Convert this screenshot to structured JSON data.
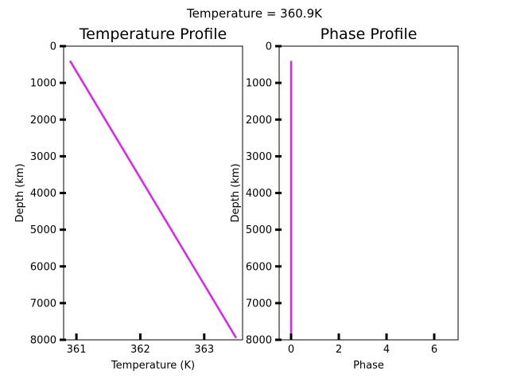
{
  "figure": {
    "suptitle": "Temperature = 360.9K"
  },
  "colors": {
    "series": "#dd22ee",
    "axes": "#000000",
    "background": "#ffffff"
  },
  "chart_data": [
    {
      "type": "line",
      "title": "Temperature Profile",
      "xlabel": "Temperature (K)",
      "ylabel": "Depth (km)",
      "xlim": [
        360.8,
        363.6
      ],
      "ylim": [
        8000,
        0
      ],
      "y_inverted": true,
      "xticks": [
        361,
        362,
        363
      ],
      "yticks": [
        0,
        1000,
        2000,
        3000,
        4000,
        5000,
        6000,
        7000,
        8000
      ],
      "grid": false,
      "series": [
        {
          "x": [
            360.9,
            363.5
          ],
          "y": [
            400,
            7950
          ]
        }
      ]
    },
    {
      "type": "line",
      "title": "Phase Profile",
      "xlabel": "Phase",
      "ylabel": "Depth (km)",
      "xlim": [
        -0.5,
        7
      ],
      "ylim": [
        8000,
        0
      ],
      "y_inverted": true,
      "xticks": [
        0,
        2,
        4,
        6
      ],
      "yticks": [
        0,
        1000,
        2000,
        3000,
        4000,
        5000,
        6000,
        7000,
        8000
      ],
      "grid": false,
      "series": [
        {
          "x": [
            0,
            0
          ],
          "y": [
            400,
            7950
          ]
        }
      ]
    }
  ]
}
